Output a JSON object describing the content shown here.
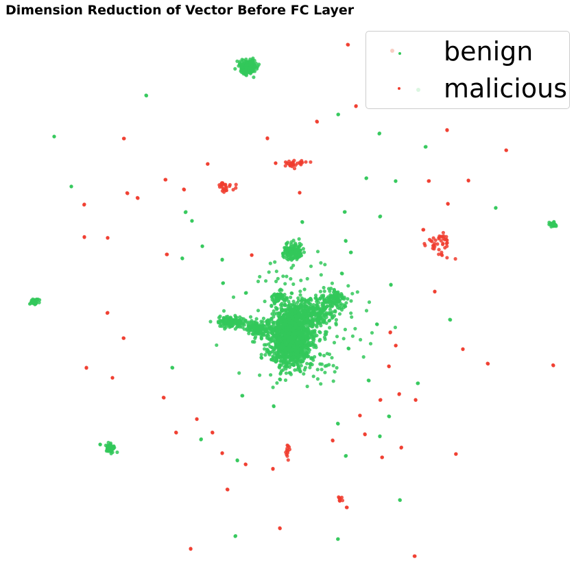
{
  "chart_data": {
    "type": "scatter",
    "title": "Dimension Reduction of Vector Before FC Layer",
    "xlabel": "",
    "ylabel": "",
    "axes_visible": false,
    "grid": false,
    "legend_position": "top-right",
    "series": [
      {
        "name": "benign",
        "color": "#33c85a",
        "clusters": [
          {
            "x": 425,
            "y": 488,
            "n": 1100,
            "sx": 14,
            "sy": 22
          },
          {
            "x": 455,
            "y": 458,
            "n": 260,
            "sx": 18,
            "sy": 10
          },
          {
            "x": 487,
            "y": 437,
            "n": 120,
            "sx": 10,
            "sy": 7
          },
          {
            "x": 376,
            "y": 478,
            "n": 120,
            "sx": 9,
            "sy": 6
          },
          {
            "x": 337,
            "y": 470,
            "n": 120,
            "sx": 10,
            "sy": 4
          },
          {
            "x": 405,
            "y": 433,
            "n": 40,
            "sx": 4,
            "sy": 4
          },
          {
            "x": 427,
            "y": 367,
            "n": 130,
            "sx": 7,
            "sy": 7
          },
          {
            "x": 423,
            "y": 510,
            "n": 200,
            "sx": 22,
            "sy": 20
          },
          {
            "x": 362,
            "y": 98,
            "n": 220,
            "sx": 6,
            "sy": 5
          },
          {
            "x": 160,
            "y": 653,
            "n": 70,
            "sx": 3,
            "sy": 3
          },
          {
            "x": 50,
            "y": 440,
            "n": 50,
            "sx": 3,
            "sy": 2
          },
          {
            "x": 807,
            "y": 327,
            "n": 40,
            "sx": 2,
            "sy": 1.5
          },
          {
            "x": 440,
            "y": 470,
            "n": 160,
            "sx": 45,
            "sy": 42
          }
        ],
        "points": [
          [
            213,
            139
          ],
          [
            79,
            199
          ],
          [
            104,
            272
          ],
          [
            271,
            309
          ],
          [
            280,
            322
          ],
          [
            295,
            359
          ],
          [
            266,
            377
          ],
          [
            324,
            379
          ],
          [
            493,
            167
          ],
          [
            553,
            195
          ],
          [
            621,
            214
          ],
          [
            534,
            260
          ],
          [
            577,
            264
          ],
          [
            503,
            309
          ],
          [
            554,
            316
          ],
          [
            441,
            324
          ],
          [
            504,
            351
          ],
          [
            512,
            368
          ],
          [
            499,
            399
          ],
          [
            570,
            415
          ],
          [
            325,
            413
          ],
          [
            359,
            427
          ],
          [
            550,
            473
          ],
          [
            656,
            466
          ],
          [
            508,
            508
          ],
          [
            251,
            536
          ],
          [
            408,
            553
          ],
          [
            538,
            555
          ],
          [
            609,
            559
          ],
          [
            353,
            577
          ],
          [
            399,
            592
          ],
          [
            567,
            607
          ],
          [
            493,
            618
          ],
          [
            554,
            636
          ],
          [
            293,
            641
          ],
          [
            146,
            648
          ],
          [
            504,
            665
          ],
          [
            346,
            671
          ],
          [
            583,
            729
          ],
          [
            343,
            782
          ],
          [
            493,
            786
          ],
          [
            723,
            303
          ]
        ]
      },
      {
        "name": "malicious",
        "color": "#f03c2e",
        "clusters": [
          {
            "x": 426,
            "y": 238,
            "n": 30,
            "sx": 12,
            "sy": 3
          },
          {
            "x": 327,
            "y": 272,
            "n": 25,
            "sx": 7,
            "sy": 4
          },
          {
            "x": 643,
            "y": 355,
            "n": 40,
            "sx": 11,
            "sy": 10
          },
          {
            "x": 420,
            "y": 658,
            "n": 12,
            "sx": 2,
            "sy": 5
          },
          {
            "x": 496,
            "y": 728,
            "n": 8,
            "sx": 2,
            "sy": 2
          }
        ],
        "points": [
          [
            507,
            65
          ],
          [
            519,
            155
          ],
          [
            462,
            177
          ],
          [
            181,
            202
          ],
          [
            390,
            202
          ],
          [
            652,
            190
          ],
          [
            738,
            219
          ],
          [
            303,
            239
          ],
          [
            241,
            262
          ],
          [
            268,
            276
          ],
          [
            186,
            282
          ],
          [
            201,
            289
          ],
          [
            437,
            281
          ],
          [
            625,
            264
          ],
          [
            683,
            263
          ],
          [
            653,
            297
          ],
          [
            123,
            298
          ],
          [
            123,
            346
          ],
          [
            157,
            347
          ],
          [
            243,
            371
          ],
          [
            367,
            372
          ],
          [
            617,
            335
          ],
          [
            634,
            425
          ],
          [
            157,
            456
          ],
          [
            180,
            493
          ],
          [
            569,
            485
          ],
          [
            577,
            504
          ],
          [
            675,
            509
          ],
          [
            711,
            530
          ],
          [
            807,
            533
          ],
          [
            126,
            536
          ],
          [
            164,
            551
          ],
          [
            567,
            534
          ],
          [
            606,
            583
          ],
          [
            239,
            580
          ],
          [
            582,
            575
          ],
          [
            555,
            583
          ],
          [
            525,
            606
          ],
          [
            287,
            611
          ],
          [
            257,
            631
          ],
          [
            310,
            631
          ],
          [
            485,
            642
          ],
          [
            532,
            633
          ],
          [
            585,
            653
          ],
          [
            665,
            662
          ],
          [
            324,
            661
          ],
          [
            358,
            677
          ],
          [
            398,
            684
          ],
          [
            557,
            667
          ],
          [
            332,
            714
          ],
          [
            506,
            740
          ],
          [
            408,
            770
          ],
          [
            278,
            800
          ],
          [
            605,
            811
          ],
          [
            402,
            238
          ]
        ]
      }
    ]
  }
}
